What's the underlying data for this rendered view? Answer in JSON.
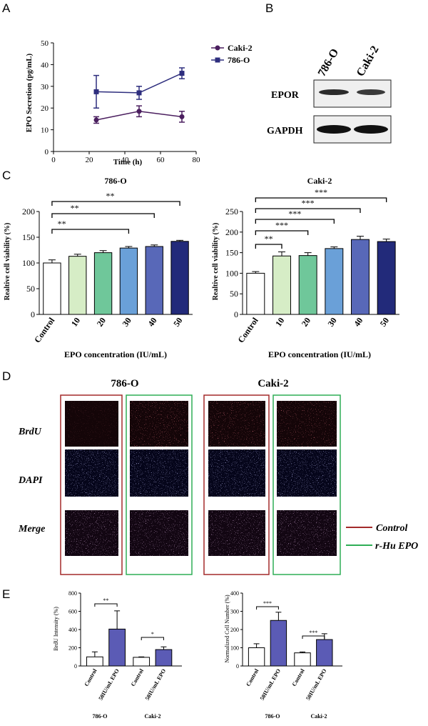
{
  "panels": {
    "A": "A",
    "B": "B",
    "C": "C",
    "D": "D",
    "E": "E"
  },
  "panel_a": {
    "ylabel": "EPO Secretion (pg/mL)",
    "xlabel": "Time (h)",
    "yticks": [
      "0",
      "10",
      "20",
      "30",
      "40",
      "50"
    ],
    "xticks": [
      "0",
      "20",
      "40",
      "60",
      "80"
    ],
    "legend": [
      "Caki-2",
      "786-O"
    ]
  },
  "panel_b": {
    "lanes": [
      "786-O",
      "Caki-2"
    ],
    "rows": [
      "EPOR",
      "GAPDH"
    ]
  },
  "panel_c": {
    "left_title": "786-O",
    "right_title": "Caki-2",
    "ylabel": "Realtive cell viability (%)",
    "xlabel": "EPO concentration (IU/mL)",
    "categories": [
      "Control",
      "10",
      "20",
      "30",
      "40",
      "50"
    ],
    "left_yticks": [
      "0",
      "50",
      "100",
      "150",
      "200"
    ],
    "right_yticks": [
      "0",
      "50",
      "100",
      "150",
      "200",
      "250"
    ],
    "left_sig": [
      "**",
      "**",
      "**"
    ],
    "right_sig": [
      "**",
      "***",
      "***",
      "***",
      "***"
    ]
  },
  "panel_d": {
    "col1": "786-O",
    "col2": "Caki-2",
    "rows": [
      "BrdU",
      "DAPI",
      "Merge"
    ],
    "legend_control": "Control",
    "legend_epo": "r-Hu EPO"
  },
  "panel_e": {
    "left_ylabel": "BrdU Intensity (%)",
    "right_ylabel": "Normalized Cell Number (%)",
    "categories": [
      "Control",
      "50IU/mL EPO",
      "Control",
      "50IU/mL EPO"
    ],
    "groups": [
      "786-O",
      "Caki-2"
    ],
    "left_yticks": [
      "0",
      "200",
      "400",
      "600",
      "800"
    ],
    "right_yticks": [
      "0",
      "100",
      "200",
      "300",
      "400"
    ],
    "left_sig": [
      "**",
      "*"
    ],
    "right_sig": [
      "***",
      "***"
    ]
  },
  "colors": {
    "navy": "#2e2e7e",
    "purple": "#4b1f5f",
    "bar_purple": "#5b5bb5",
    "frame_red": "#a32a2a",
    "frame_green": "#2fae56"
  },
  "chart_data": [
    {
      "type": "line",
      "title": "",
      "xlabel": "Time (h)",
      "ylabel": "EPO Secretion (pg/mL)",
      "xlim": [
        0,
        80
      ],
      "ylim": [
        0,
        50
      ],
      "x": [
        24,
        48,
        72
      ],
      "series": [
        {
          "name": "Caki-2",
          "values": [
            14.5,
            18.5,
            16
          ],
          "errors": [
            1.5,
            2.5,
            2.5
          ],
          "marker": "circle",
          "color": "#4b1f5f"
        },
        {
          "name": "786-O",
          "values": [
            27.5,
            27,
            36
          ],
          "errors": [
            7.5,
            3,
            2.5
          ],
          "marker": "square",
          "color": "#2e2e7e"
        }
      ],
      "legend": "right"
    },
    {
      "type": "bar",
      "title": "786-O",
      "xlabel": "EPO concentration (IU/mL)",
      "ylabel": "Realtive cell viability (%)",
      "ylim": [
        0,
        200
      ],
      "categories": [
        "Control",
        "10",
        "20",
        "30",
        "40",
        "50"
      ],
      "values": [
        100,
        113,
        120,
        129,
        132,
        142
      ],
      "errors": [
        6,
        4,
        4,
        3,
        3,
        2
      ],
      "colors": [
        "#ffffff",
        "#d6edc6",
        "#6fc79a",
        "#6aa0d8",
        "#5868b8",
        "#222a7a"
      ],
      "significance": [
        {
          "from": "Control",
          "to": "30",
          "label": "**"
        },
        {
          "from": "Control",
          "to": "40",
          "label": "**"
        },
        {
          "from": "Control",
          "to": "50",
          "label": "**"
        }
      ]
    },
    {
      "type": "bar",
      "title": "Caki-2",
      "xlabel": "EPO concentration (IU/mL)",
      "ylabel": "Realtive cell viability (%)",
      "ylim": [
        0,
        250
      ],
      "categories": [
        "Control",
        "10",
        "20",
        "30",
        "40",
        "50"
      ],
      "values": [
        100,
        142,
        143,
        160,
        182,
        177
      ],
      "errors": [
        4,
        10,
        7,
        4,
        8,
        6
      ],
      "colors": [
        "#ffffff",
        "#d6edc6",
        "#6fc79a",
        "#6aa0d8",
        "#5868b8",
        "#222a7a"
      ],
      "significance": [
        {
          "from": "Control",
          "to": "10",
          "label": "**"
        },
        {
          "from": "Control",
          "to": "20",
          "label": "***"
        },
        {
          "from": "Control",
          "to": "30",
          "label": "***"
        },
        {
          "from": "Control",
          "to": "40",
          "label": "***"
        },
        {
          "from": "Control",
          "to": "50",
          "label": "***"
        }
      ]
    },
    {
      "type": "bar",
      "title": "",
      "ylabel": "BrdU Intensity (%)",
      "ylim": [
        0,
        800
      ],
      "categories": [
        "Control",
        "50IU/mL EPO",
        "Control",
        "50IU/mL EPO"
      ],
      "groups": [
        "786-O",
        "786-O",
        "Caki-2",
        "Caki-2"
      ],
      "values": [
        100,
        405,
        95,
        180
      ],
      "errors": [
        55,
        200,
        5,
        30
      ],
      "colors": [
        "#ffffff",
        "#5b5bb5",
        "#ffffff",
        "#5b5bb5"
      ],
      "significance": [
        {
          "from": 0,
          "to": 1,
          "label": "**"
        },
        {
          "from": 2,
          "to": 3,
          "label": "*"
        }
      ]
    },
    {
      "type": "bar",
      "title": "",
      "ylabel": "Normalized Cell Number (%)",
      "ylim": [
        0,
        400
      ],
      "categories": [
        "Control",
        "50IU/mL EPO",
        "Control",
        "50IU/mL EPO"
      ],
      "groups": [
        "786-O",
        "786-O",
        "Caki-2",
        "Caki-2"
      ],
      "values": [
        100,
        250,
        72,
        145
      ],
      "errors": [
        22,
        45,
        5,
        32
      ],
      "colors": [
        "#ffffff",
        "#5b5bb5",
        "#ffffff",
        "#5b5bb5"
      ],
      "significance": [
        {
          "from": 0,
          "to": 1,
          "label": "***"
        },
        {
          "from": 2,
          "to": 3,
          "label": "***"
        }
      ]
    }
  ]
}
